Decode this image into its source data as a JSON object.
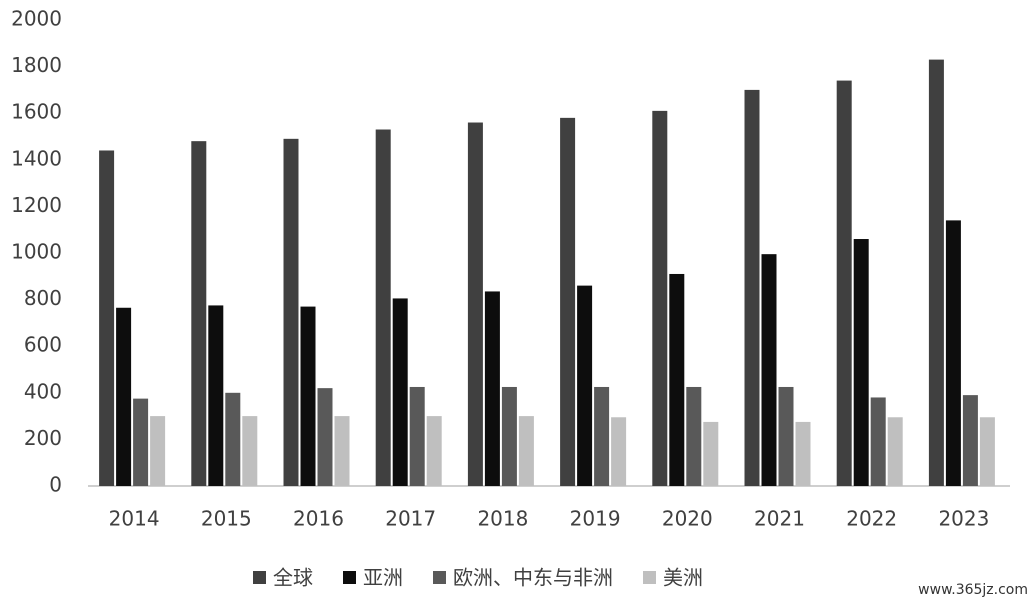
{
  "chart_data": {
    "type": "bar",
    "categories": [
      "2014",
      "2015",
      "2016",
      "2017",
      "2018",
      "2019",
      "2020",
      "2021",
      "2022",
      "2023"
    ],
    "series": [
      {
        "name": "全球",
        "color": "#404040",
        "values": [
          1440,
          1480,
          1490,
          1530,
          1560,
          1580,
          1610,
          1700,
          1740,
          1830
        ]
      },
      {
        "name": "亚洲",
        "color": "#0d0d0d",
        "values": [
          765,
          775,
          770,
          805,
          835,
          860,
          910,
          995,
          1060,
          1140
        ]
      },
      {
        "name": "欧洲、中东与非洲",
        "color": "#595959",
        "values": [
          375,
          400,
          420,
          425,
          425,
          425,
          425,
          425,
          380,
          390
        ]
      },
      {
        "name": "美洲",
        "color": "#bfbfbf",
        "values": [
          300,
          300,
          300,
          300,
          300,
          295,
          275,
          275,
          295,
          295
        ]
      }
    ],
    "ylim": [
      0,
      2000
    ],
    "yticks": [
      0,
      200,
      400,
      600,
      800,
      1000,
      1200,
      1400,
      1600,
      1800,
      2000
    ],
    "grid": false,
    "legend": "bottom",
    "watermark": "www.365jz.com"
  }
}
